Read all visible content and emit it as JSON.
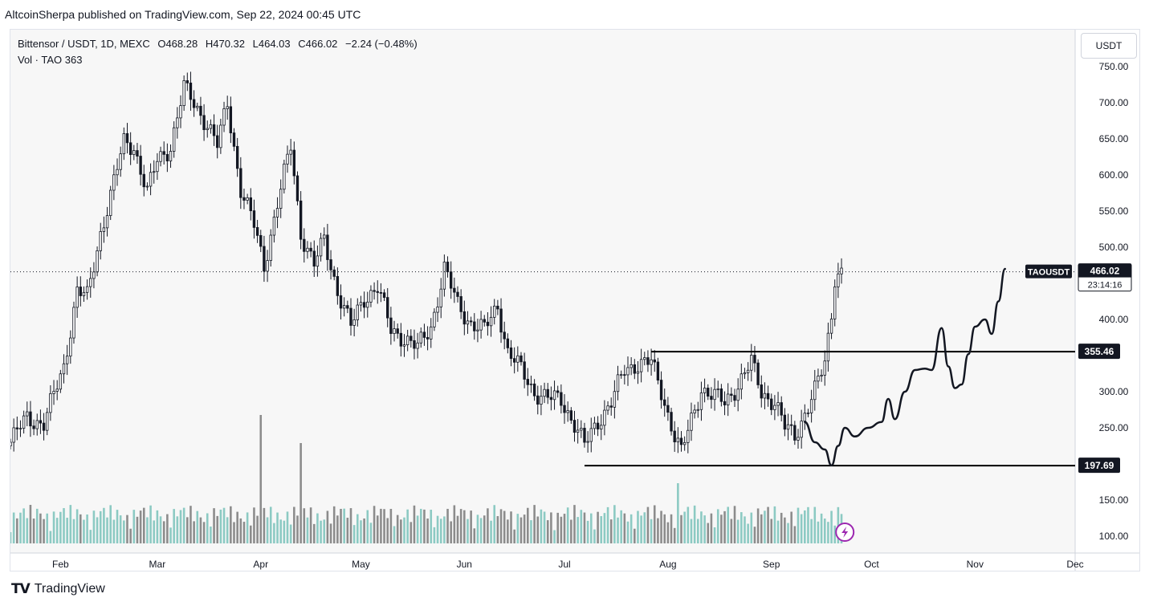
{
  "header": {
    "publish_line": "AltcoinSherpa published on TradingView.com, Sep 22, 2024 00:45 UTC"
  },
  "legend": {
    "symbol_line": "Bittensor / USDT, 1D, MEXC",
    "open": "O468.28",
    "high": "H470.32",
    "low": "L464.03",
    "close": "C466.02",
    "change": "−2.24 (−0.48%)",
    "volume_line": "Vol · TAO  363"
  },
  "currency_button": "USDT",
  "footer": {
    "logo_mark": "TV",
    "logo_text": "TradingView"
  },
  "colors": {
    "up": "#ffffff",
    "down": "#131722",
    "vol_up": "#7fc4bc",
    "vol_down": "#808080",
    "level_line": "#000000",
    "price_tag": "#131722",
    "lightning": "#9c27b0"
  },
  "chart_data": {
    "type": "candlestick",
    "symbol": "TAOUSDT",
    "interval": "1D",
    "ylim": [
      90,
      790
    ],
    "y_ticks": [
      100,
      150,
      200,
      250,
      300,
      350,
      400,
      450,
      500,
      550,
      600,
      650,
      700,
      750
    ],
    "y_tick_labels": [
      "100.00",
      "150.00",
      "",
      "250.00",
      "300.00",
      "",
      "400.00",
      "",
      "500.00",
      "550.00",
      "600.00",
      "650.00",
      "700.00",
      "750.00"
    ],
    "x_tick_labels": [
      "Feb",
      "Mar",
      "Apr",
      "May",
      "Jun",
      "Jul",
      "Aug",
      "Sep",
      "Oct",
      "Nov",
      "Dec"
    ],
    "x_ticks": [
      "2024-02-01",
      "2024-03-01",
      "2024-04-01",
      "2024-05-01",
      "2024-06-01",
      "2024-07-01",
      "2024-08-01",
      "2024-09-01",
      "2024-10-01",
      "2024-11-01",
      "2024-12-01"
    ],
    "x_range": [
      "2024-01-17",
      "2024-12-01"
    ],
    "last_price": {
      "label": "TAOUSDT",
      "value": "466.02",
      "countdown": "23:14:16",
      "price": 466.02
    },
    "horizontal_levels": [
      {
        "price": 355.46,
        "label": "355.46",
        "from": "2024-07-27"
      },
      {
        "price": 197.69,
        "label": "197.69",
        "from": "2024-07-07"
      }
    ],
    "price_anchors": [
      [
        "2024-01-17",
        230
      ],
      [
        "2024-01-22",
        265
      ],
      [
        "2024-01-27",
        255
      ],
      [
        "2024-02-02",
        335
      ],
      [
        "2024-02-06",
        440
      ],
      [
        "2024-02-09",
        430
      ],
      [
        "2024-02-13",
        520
      ],
      [
        "2024-02-17",
        590
      ],
      [
        "2024-02-20",
        645
      ],
      [
        "2024-02-23",
        640
      ],
      [
        "2024-02-27",
        575
      ],
      [
        "2024-03-01",
        620
      ],
      [
        "2024-03-05",
        640
      ],
      [
        "2024-03-09",
        720
      ],
      [
        "2024-03-12",
        700
      ],
      [
        "2024-03-16",
        670
      ],
      [
        "2024-03-19",
        640
      ],
      [
        "2024-03-22",
        700
      ],
      [
        "2024-03-26",
        580
      ],
      [
        "2024-03-30",
        530
      ],
      [
        "2024-04-02",
        475
      ],
      [
        "2024-04-06",
        560
      ],
      [
        "2024-04-10",
        640
      ],
      [
        "2024-04-13",
        520
      ],
      [
        "2024-04-17",
        475
      ],
      [
        "2024-04-20",
        510
      ],
      [
        "2024-04-24",
        440
      ],
      [
        "2024-04-28",
        390
      ],
      [
        "2024-05-02",
        430
      ],
      [
        "2024-05-06",
        445
      ],
      [
        "2024-05-10",
        385
      ],
      [
        "2024-05-14",
        375
      ],
      [
        "2024-05-18",
        360
      ],
      [
        "2024-05-22",
        390
      ],
      [
        "2024-05-26",
        470
      ],
      [
        "2024-05-30",
        420
      ],
      [
        "2024-06-03",
        395
      ],
      [
        "2024-06-07",
        385
      ],
      [
        "2024-06-11",
        420
      ],
      [
        "2024-06-14",
        355
      ],
      [
        "2024-06-18",
        330
      ],
      [
        "2024-06-22",
        300
      ],
      [
        "2024-06-26",
        290
      ],
      [
        "2024-06-30",
        290
      ],
      [
        "2024-07-04",
        255
      ],
      [
        "2024-07-07",
        225
      ],
      [
        "2024-07-11",
        260
      ],
      [
        "2024-07-15",
        285
      ],
      [
        "2024-07-19",
        330
      ],
      [
        "2024-07-23",
        340
      ],
      [
        "2024-07-27",
        340
      ],
      [
        "2024-07-30",
        300
      ],
      [
        "2024-08-03",
        240
      ],
      [
        "2024-08-05",
        215
      ],
      [
        "2024-08-08",
        260
      ],
      [
        "2024-08-11",
        305
      ],
      [
        "2024-08-14",
        295
      ],
      [
        "2024-08-18",
        285
      ],
      [
        "2024-08-22",
        310
      ],
      [
        "2024-08-26",
        340
      ],
      [
        "2024-08-29",
        300
      ],
      [
        "2024-09-02",
        285
      ],
      [
        "2024-09-05",
        250
      ],
      [
        "2024-09-08",
        240
      ],
      [
        "2024-09-11",
        270
      ],
      [
        "2024-09-14",
        300
      ],
      [
        "2024-09-17",
        340
      ],
      [
        "2024-09-19",
        410
      ],
      [
        "2024-09-20",
        460
      ],
      [
        "2024-09-22",
        466
      ]
    ],
    "volume_relative": "bars at the bottom of the pane, spikes around 2024-04-01 and 2024-04-13",
    "projection_path": [
      [
        "2024-09-11",
        258
      ],
      [
        "2024-09-14",
        230
      ],
      [
        "2024-09-17",
        220
      ],
      [
        "2024-09-19",
        198
      ],
      [
        "2024-09-21",
        225
      ],
      [
        "2024-09-23",
        250
      ],
      [
        "2024-09-26",
        238
      ],
      [
        "2024-09-30",
        250
      ],
      [
        "2024-10-04",
        258
      ],
      [
        "2024-10-06",
        290
      ],
      [
        "2024-10-08",
        262
      ],
      [
        "2024-10-11",
        300
      ],
      [
        "2024-10-14",
        330
      ],
      [
        "2024-10-17",
        332
      ],
      [
        "2024-10-19",
        330
      ],
      [
        "2024-10-22",
        388
      ],
      [
        "2024-10-24",
        335
      ],
      [
        "2024-10-26",
        305
      ],
      [
        "2024-10-28",
        310
      ],
      [
        "2024-10-30",
        352
      ],
      [
        "2024-11-01",
        390
      ],
      [
        "2024-11-04",
        400
      ],
      [
        "2024-11-06",
        380
      ],
      [
        "2024-11-08",
        425
      ],
      [
        "2024-11-10",
        470
      ]
    ]
  }
}
